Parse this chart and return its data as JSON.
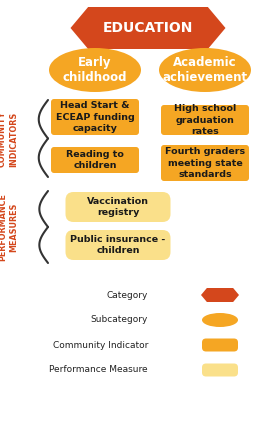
{
  "title": "EDUCATION",
  "title_color": "#FFFFFF",
  "title_bg_color": "#D4471C",
  "subcategories": [
    "Early\nchildhood",
    "Academic\nachievement"
  ],
  "subcategory_color": "#F5A623",
  "subcategory_text_color": "#FFFFFF",
  "community_indicators_left": [
    "Head Start &\nECEAP funding\ncapacity",
    "Reading to\nchildren"
  ],
  "community_indicators_right": [
    "High school\ngraduation\nrates",
    "Fourth graders\nmeeting state\nstandards"
  ],
  "community_indicator_color": "#F5A623",
  "community_indicator_text_color": "#1A1A1A",
  "performance_measures": [
    "Vaccination\nregistry",
    "Public insurance -\nchildren"
  ],
  "performance_measure_color": "#FAE08A",
  "performance_measure_text_color": "#1A1A1A",
  "label_community": "COMMUNITY\nINDICATORS",
  "label_performance": "PERFORMANCE\nMEASURES",
  "label_color": "#D4471C",
  "legend_items": [
    "Category",
    "Subcategory",
    "Community Indicator",
    "Performance Measure"
  ],
  "legend_colors": [
    "#D4471C",
    "#F5A623",
    "#F5A623",
    "#FAE08A"
  ],
  "legend_shape_colors": [
    "#D4471C",
    "#F5A623",
    "#F5A623",
    "#FAE08A"
  ],
  "background": "#FFFFFF"
}
